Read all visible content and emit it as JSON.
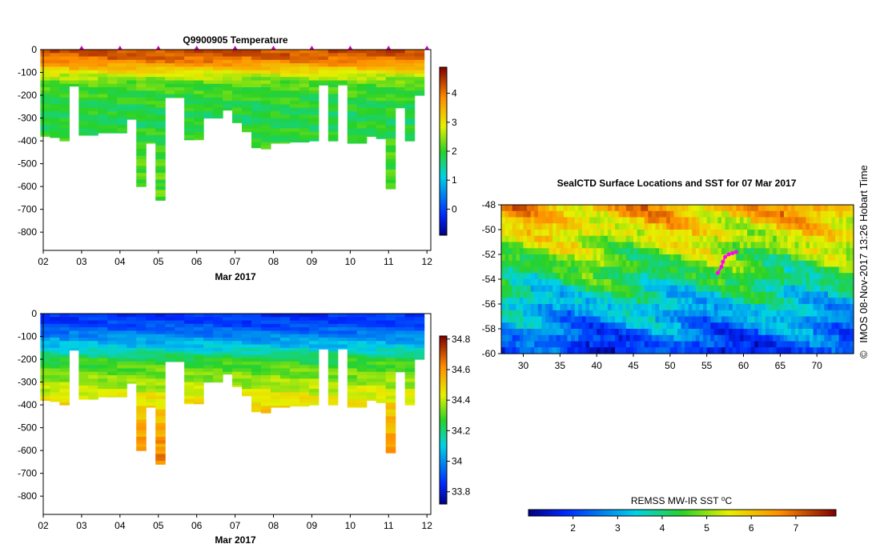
{
  "copyright": {
    "symbol": "©",
    "text": "IMOS 08-Nov-2017 13:26 Hobart Time"
  },
  "chart_data": [
    {
      "type": "heatmap",
      "id": "temperature-section",
      "title": "Q9900905  Temperature",
      "xlabel": "Mar 2017",
      "x_ticks": [
        "02",
        "03",
        "04",
        "05",
        "06",
        "07",
        "08",
        "09",
        "10",
        "11",
        "12"
      ],
      "x_range": [
        2,
        12.1
      ],
      "y_ticks": [
        "0",
        "-100",
        "-200",
        "-300",
        "-400",
        "-500",
        "-600",
        "-700",
        "-800"
      ],
      "y_range": [
        -880,
        0
      ],
      "colorbar": {
        "min": -0.9,
        "max": 4.9,
        "ticks": [
          "0",
          "1",
          "2",
          "3",
          "4"
        ]
      },
      "profile_days": [
        2.05,
        2.3,
        2.55,
        2.8,
        3.05,
        3.3,
        3.55,
        3.8,
        4.05,
        4.3,
        4.55,
        4.8,
        5.05,
        5.3,
        5.55,
        5.8,
        6.05,
        6.3,
        6.55,
        6.8,
        7.05,
        7.3,
        7.55,
        7.8,
        8.05,
        8.3,
        8.55,
        8.8,
        9.05,
        9.3,
        9.55,
        9.8,
        10.05,
        10.3,
        10.55,
        10.8,
        11.05,
        11.3,
        11.55,
        11.8
      ],
      "profile_max_depth": [
        380,
        385,
        400,
        160,
        375,
        375,
        365,
        365,
        365,
        305,
        600,
        410,
        660,
        210,
        210,
        395,
        395,
        300,
        300,
        265,
        320,
        360,
        430,
        435,
        410,
        410,
        405,
        405,
        400,
        155,
        400,
        155,
        410,
        410,
        380,
        390,
        610,
        255,
        400,
        200
      ],
      "surface_markers_days": [
        3,
        4,
        5,
        6,
        7,
        8,
        9,
        10,
        11,
        12
      ],
      "profile": {
        "depths": [
          0,
          30,
          60,
          90,
          120,
          150,
          200,
          250,
          300,
          350,
          400,
          500,
          600,
          700
        ],
        "values": [
          4.3,
          4.2,
          3.8,
          3.2,
          2.6,
          2.2,
          2.0,
          1.9,
          1.85,
          1.9,
          2.0,
          2.1,
          2.2,
          2.3
        ]
      }
    },
    {
      "type": "heatmap",
      "id": "salinity-section",
      "title": "",
      "xlabel": "Mar 2017",
      "x_ticks": [
        "02",
        "03",
        "04",
        "05",
        "06",
        "07",
        "08",
        "09",
        "10",
        "11",
        "12"
      ],
      "x_range": [
        2,
        12.1
      ],
      "y_ticks": [
        "0",
        "-100",
        "-200",
        "-300",
        "-400",
        "-500",
        "-600",
        "-700",
        "-800"
      ],
      "y_range": [
        -880,
        0
      ],
      "colorbar": {
        "min": 33.72,
        "max": 34.82,
        "ticks": [
          "33.8",
          "34",
          "34.2",
          "34.4",
          "34.6",
          "34.8"
        ]
      },
      "profile": {
        "depths": [
          0,
          50,
          100,
          150,
          200,
          250,
          300,
          350,
          400,
          500,
          600,
          700
        ],
        "values": [
          33.85,
          33.9,
          34.0,
          34.1,
          34.25,
          34.32,
          34.37,
          34.42,
          34.48,
          34.55,
          34.62,
          34.66
        ]
      }
    },
    {
      "type": "heatmap",
      "id": "sst-map",
      "title": "SealCTD Surface Locations and SST for 07 Mar 2017",
      "x_ticks": [
        "30",
        "35",
        "40",
        "45",
        "50",
        "55",
        "60",
        "65",
        "70"
      ],
      "x_range": [
        27,
        75
      ],
      "y_ticks": [
        "-48",
        "-50",
        "-52",
        "-54",
        "-56",
        "-58",
        "-60"
      ],
      "y_range": [
        -60,
        -48
      ],
      "colorbar_label": "REMSS MW-IR SST ⁰C",
      "colorbar": {
        "min": 1.0,
        "max": 7.9,
        "ticks": [
          "2",
          "3",
          "4",
          "5",
          "6",
          "7"
        ]
      },
      "track": [
        [
          56.5,
          -53.5
        ],
        [
          57.0,
          -53.0
        ],
        [
          57.2,
          -52.6
        ],
        [
          57.5,
          -52.2
        ],
        [
          58.0,
          -52.0
        ],
        [
          58.5,
          -51.9
        ],
        [
          59.0,
          -51.8
        ]
      ],
      "track_color": "#ff00ff"
    }
  ]
}
